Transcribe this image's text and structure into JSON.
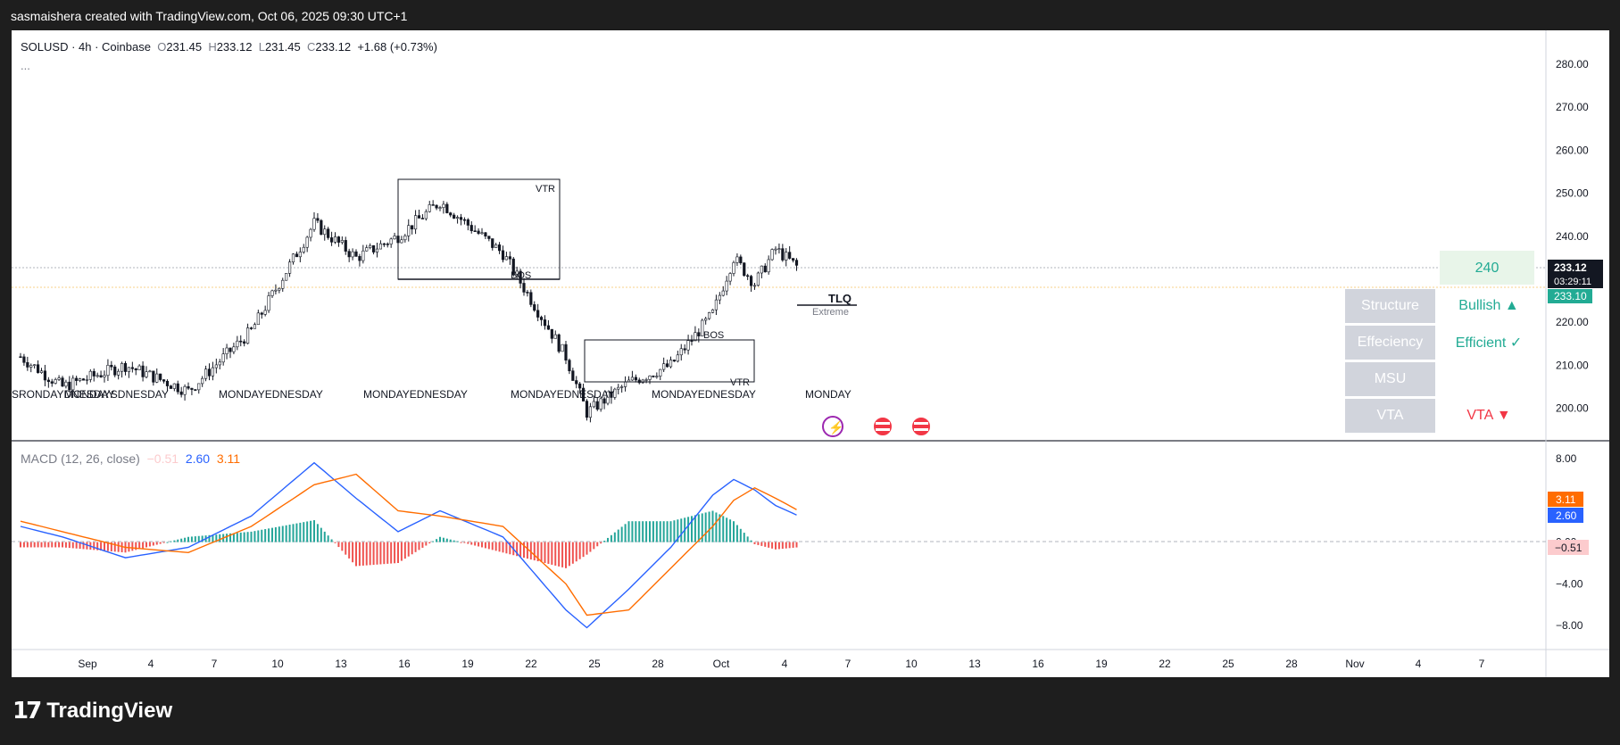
{
  "header": {
    "text": "sasmaishera created with TradingView.com, Oct 06, 2025 09:30 UTC+1"
  },
  "legend": {
    "symbol": "SOLUSD · 4h · Coinbase",
    "o_label": "O",
    "o": "231.45",
    "h_label": "H",
    "h": "233.12",
    "l_label": "L",
    "l": "231.45",
    "c_label": "C",
    "c": "233.12",
    "change": "+1.68 (+0.73%)",
    "more": "..."
  },
  "macd_legend": {
    "name": "MACD (12, 26, close)",
    "hist": "−0.51",
    "macd": "2.60",
    "signal": "3.11"
  },
  "price_axis": {
    "ticks": [
      "280.00",
      "270.00",
      "260.00",
      "250.00",
      "240.00",
      "230.00",
      "220.00",
      "210.00",
      "200.00"
    ],
    "current_price": "233.12",
    "countdown": "03:29:11",
    "secondary": "233.10"
  },
  "macd_axis": {
    "ticks": [
      "8.00",
      "4.00",
      "0.00",
      "−4.00",
      "−8.00"
    ],
    "signal_tag": "3.11",
    "macd_tag": "2.60",
    "hist_tag": "−0.51"
  },
  "time_axis": {
    "ticks": [
      "Sep",
      "4",
      "7",
      "10",
      "13",
      "16",
      "19",
      "22",
      "25",
      "28",
      "Oct",
      "4",
      "7",
      "10",
      "13",
      "16",
      "19",
      "22",
      "25",
      "28",
      "Nov",
      "4",
      "7"
    ]
  },
  "annotations": {
    "vtr": "VTR",
    "bos": "BOS",
    "tlq": "TLQ",
    "extreme": "Extreme",
    "monday": "MONDAY",
    "weekday_cluster_1": "SRONDAYDNESDAY",
    "weekday_cluster_2": "MONDAYSDNESDAY",
    "weekday_cluster_3": "MONDAYEDNESDAY",
    "weekday_cluster_4": "MONDAYEDNESDAY",
    "weekday_cluster_5": "MONDAYEDNESDAY",
    "weekday_cluster_6": "MONDAYEDNESDAY"
  },
  "panel": {
    "target": "240",
    "rows": [
      {
        "label": "Structure",
        "value": "Bullish ▲",
        "color": "#22ab94"
      },
      {
        "label": "Effeciency",
        "value": "Efficient ✓",
        "color": "#22ab94"
      },
      {
        "label": "MSU",
        "value": "",
        "color": "#22ab94"
      },
      {
        "label": "VTA",
        "value": "VTA ▼",
        "color": "#f23645"
      }
    ]
  },
  "footer": {
    "logo_mark": "17",
    "logo_text": "TradingView"
  },
  "colors": {
    "up": "#22ab94",
    "down": "#f23645",
    "macd": "#2962ff",
    "signal": "#ff6d00",
    "text": "#131722",
    "muted": "#787b86"
  },
  "chart_data": [
    {
      "type": "candlestick",
      "title": "SOLUSD · 4h · Coinbase",
      "ylim": [
        195,
        285
      ],
      "x_ticks": [
        "Sep",
        "4",
        "7",
        "10",
        "13",
        "16",
        "19",
        "22",
        "25",
        "28",
        "Oct",
        "4",
        "7",
        "10",
        "13",
        "16",
        "19",
        "22",
        "25",
        "28",
        "Nov",
        "4",
        "7"
      ],
      "key_points": {
        "dates": [
          "Aug 30",
          "Sep 1",
          "Sep 4",
          "Sep 7",
          "Sep 10",
          "Sep 13",
          "Sep 15",
          "Sep 17",
          "Sep 19",
          "Sep 22",
          "Sep 25",
          "Sep 26",
          "Sep 28",
          "Sep 30",
          "Oct 2",
          "Oct 3",
          "Oct 4",
          "Oct 5",
          "Oct 6"
        ],
        "price": [
          212,
          205,
          210,
          204,
          218,
          243,
          235,
          240,
          248,
          236,
          212,
          199,
          206,
          210,
          222,
          235,
          229,
          237,
          233
        ]
      },
      "last": {
        "open": 231.45,
        "high": 233.12,
        "low": 231.45,
        "close": 233.12,
        "change": 1.68,
        "change_pct": 0.73
      },
      "levels": {
        "target": 240,
        "bos_1": 232,
        "bos_2": 215,
        "tlq": 229
      }
    },
    {
      "type": "line",
      "title": "MACD (12, 26, close)",
      "ylim": [
        -9,
        9
      ],
      "series": [
        {
          "name": "MACD",
          "x": [
            "Aug 30",
            "Sep 1",
            "Sep 4",
            "Sep 7",
            "Sep 10",
            "Sep 13",
            "Sep 15",
            "Sep 17",
            "Sep 19",
            "Sep 22",
            "Sep 25",
            "Sep 26",
            "Sep 28",
            "Sep 30",
            "Oct 2",
            "Oct 3",
            "Oct 4",
            "Oct 5",
            "Oct 6"
          ],
          "values": [
            1.5,
            0.5,
            -1.5,
            -0.5,
            2.5,
            7.6,
            4.2,
            1.0,
            3.0,
            0.5,
            -6.5,
            -8.2,
            -4.5,
            -0.5,
            4.5,
            6.0,
            5.0,
            3.5,
            2.6
          ]
        },
        {
          "name": "Signal",
          "x": [
            "Aug 30",
            "Sep 1",
            "Sep 4",
            "Sep 7",
            "Sep 10",
            "Sep 13",
            "Sep 15",
            "Sep 17",
            "Sep 19",
            "Sep 22",
            "Sep 25",
            "Sep 26",
            "Sep 28",
            "Sep 30",
            "Oct 2",
            "Oct 3",
            "Oct 4",
            "Oct 5",
            "Oct 6"
          ],
          "values": [
            2.0,
            1.0,
            -0.5,
            -1.0,
            1.5,
            5.5,
            6.5,
            3.0,
            2.5,
            1.5,
            -4.0,
            -7.0,
            -6.5,
            -2.5,
            1.5,
            4.0,
            5.2,
            4.2,
            3.11
          ]
        },
        {
          "name": "Histogram",
          "x": [
            "Aug 30",
            "Sep 1",
            "Sep 4",
            "Sep 7",
            "Sep 10",
            "Sep 13",
            "Sep 15",
            "Sep 17",
            "Sep 19",
            "Sep 22",
            "Sep 25",
            "Sep 26",
            "Sep 28",
            "Sep 30",
            "Oct 2",
            "Oct 3",
            "Oct 4",
            "Oct 5",
            "Oct 6"
          ],
          "values": [
            -0.5,
            -0.5,
            -1.0,
            0.5,
            1.0,
            2.1,
            -2.3,
            -2.0,
            0.5,
            -1.0,
            -2.5,
            -1.2,
            2.0,
            2.0,
            3.0,
            2.0,
            -0.2,
            -0.7,
            -0.51
          ]
        }
      ]
    }
  ]
}
